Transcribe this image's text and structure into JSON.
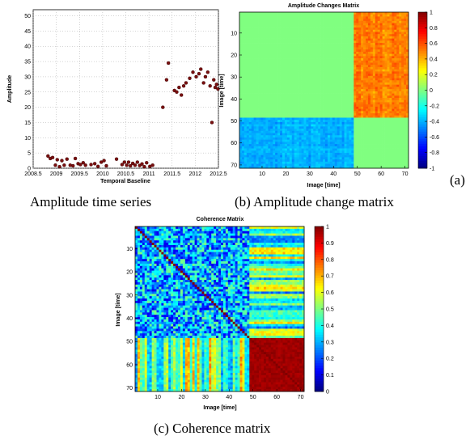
{
  "captions": {
    "a_side": "(a)",
    "a": "Amplitude time series",
    "b": "(b) Amplitude change matrix",
    "c": "(c) Coherence matrix"
  },
  "chart_data": [
    {
      "id": "amplitude_series",
      "type": "scatter",
      "title": "",
      "xlabel": "Temporal Baseline",
      "ylabel": "Amplitude",
      "xlim": [
        2008.5,
        2012.5
      ],
      "ylim": [
        0,
        52
      ],
      "xticks": [
        "2008.5",
        "2009",
        "2009.5",
        "2010",
        "2010.5",
        "2011",
        "2011.5",
        "2012",
        "2012.5"
      ],
      "yticks": [
        "0",
        "5",
        "10",
        "15",
        "20",
        "25",
        "30",
        "35",
        "40",
        "45",
        "50"
      ],
      "grid": true,
      "color": "#7a1010",
      "x": [
        2008.82,
        2008.87,
        2008.92,
        2008.98,
        2009.02,
        2009.07,
        2009.12,
        2009.17,
        2009.23,
        2009.3,
        2009.36,
        2009.41,
        2009.47,
        2009.52,
        2009.58,
        2009.63,
        2009.75,
        2009.83,
        2009.9,
        2009.97,
        2010.03,
        2010.08,
        2010.3,
        2010.42,
        2010.47,
        2010.52,
        2010.56,
        2010.6,
        2010.65,
        2010.7,
        2010.75,
        2010.8,
        2010.85,
        2010.9,
        2010.95,
        2011.02,
        2011.08,
        2011.3,
        2011.38,
        2011.42,
        2011.55,
        2011.6,
        2011.65,
        2011.7,
        2011.75,
        2011.8,
        2011.88,
        2011.95,
        2012.02,
        2012.08,
        2012.12,
        2012.18,
        2012.22,
        2012.27,
        2012.32,
        2012.36,
        2012.4,
        2012.43,
        2012.46,
        2012.49
      ],
      "y": [
        4.0,
        3.2,
        3.5,
        1.0,
        2.8,
        0.5,
        2.5,
        1.0,
        3.0,
        1.0,
        0.8,
        3.2,
        1.5,
        1.2,
        1.8,
        1.0,
        1.2,
        1.5,
        0.6,
        2.0,
        2.5,
        0.8,
        3.0,
        1.2,
        2.0,
        1.0,
        2.0,
        0.8,
        1.6,
        1.0,
        2.0,
        0.9,
        1.4,
        0.5,
        1.8,
        0.6,
        1.0,
        20.0,
        29.0,
        34.5,
        25.5,
        25.0,
        26.5,
        24.0,
        27.0,
        28.0,
        29.5,
        31.5,
        30.0,
        31.0,
        32.5,
        28.0,
        30.0,
        31.5,
        27.0,
        15.0,
        29.0,
        26.5,
        27.5,
        26.0
      ]
    },
    {
      "id": "amplitude_change_matrix",
      "type": "heatmap",
      "title": "Amplitude Changes Matrix",
      "xlabel": "Image [time]",
      "ylabel": "Image [time]",
      "n": 71,
      "split": 48,
      "blocks": {
        "top_left": 0.0,
        "top_right": 0.5,
        "bottom_left": -0.4,
        "bottom_right": 0.0
      },
      "xticks": [
        "10",
        "20",
        "30",
        "40",
        "50",
        "60",
        "70"
      ],
      "yticks": [
        "10",
        "20",
        "30",
        "40",
        "50",
        "60",
        "70"
      ],
      "clim": [
        -1,
        1
      ],
      "colorbar_ticks": [
        "1",
        "0.8",
        "0.6",
        "0.4",
        "0.2",
        "0",
        "-0.2",
        "-0.4",
        "-0.6",
        "-0.8",
        "-1"
      ]
    },
    {
      "id": "coherence_matrix",
      "type": "heatmap",
      "title": "Coherence Matrix",
      "xlabel": "Image [time]",
      "ylabel": "Image [time]",
      "n": 71,
      "split": 48,
      "blocks": {
        "top_left": 0.3,
        "top_right": 0.45,
        "bottom_left": 0.5,
        "bottom_right": 0.97,
        "diagonal": 1.0
      },
      "xticks": [
        "10",
        "20",
        "30",
        "40",
        "50",
        "60",
        "70"
      ],
      "yticks": [
        "10",
        "20",
        "30",
        "40",
        "50",
        "60",
        "70"
      ],
      "clim": [
        0,
        1
      ],
      "colorbar_ticks": [
        "1",
        "0.9",
        "0.8",
        "0.7",
        "0.6",
        "0.5",
        "0.4",
        "0.3",
        "0.2",
        "0.1",
        "0"
      ]
    }
  ]
}
